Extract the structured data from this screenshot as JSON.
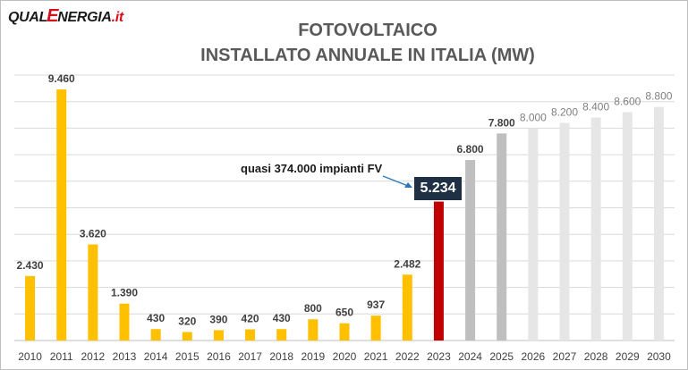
{
  "logo": {
    "part1": "QUAL",
    "mark": "E",
    "part2": "NERGIA",
    "domain": ".it"
  },
  "chart_data": {
    "type": "bar",
    "title": "FOTOVOLTAICO",
    "subtitle": "INSTALLATO ANNUALE IN ITALIA (MW)",
    "xlabel": "",
    "ylabel": "",
    "ylim": [
      0,
      10000
    ],
    "grid": true,
    "categories": [
      "2010",
      "2011",
      "2012",
      "2013",
      "2014",
      "2015",
      "2016",
      "2017",
      "2018",
      "2019",
      "2020",
      "2021",
      "2022",
      "2023",
      "2024",
      "2025",
      "2026",
      "2027",
      "2028",
      "2029",
      "2030"
    ],
    "values": [
      2430,
      9460,
      3620,
      1390,
      430,
      320,
      390,
      420,
      430,
      800,
      650,
      937,
      2482,
      5234,
      6800,
      7800,
      8000,
      8200,
      8400,
      8600,
      8800
    ],
    "value_labels": [
      "2.430",
      "9.460",
      "3.620",
      "1.390",
      "430",
      "320",
      "390",
      "420",
      "430",
      "800",
      "650",
      "937",
      "2.482",
      "5.234",
      "6.800",
      "7.800",
      "8.000",
      "8.200",
      "8.400",
      "8.600",
      "8.800"
    ],
    "colors": {
      "historical": "#ffc000",
      "current": "#c00000",
      "forecast_dark": "#bfbfbf",
      "forecast_light": "#e7e6e6",
      "label_dark": "#404040",
      "label_light": "#7f7f7f",
      "gridline": "#d9d9d9",
      "callout_bg": "#1f2f44",
      "arrow": "#2e75b6"
    },
    "annotation": {
      "text": "quasi 374.000 impianti FV",
      "category": "2023",
      "callout": "5.234"
    }
  }
}
